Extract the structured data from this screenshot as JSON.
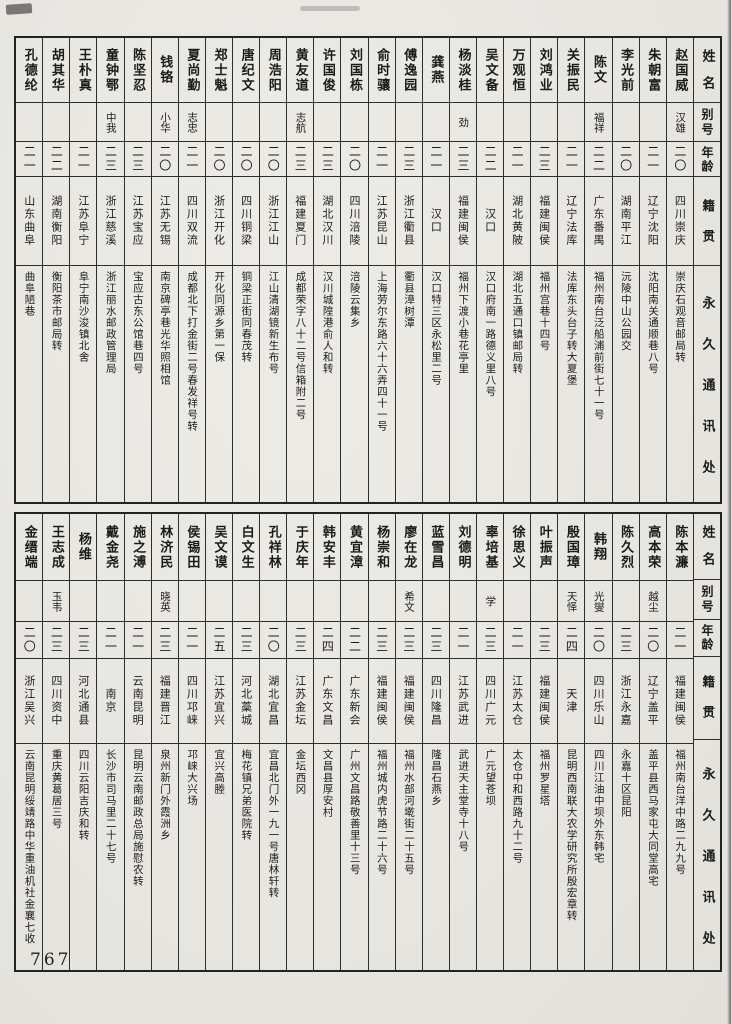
{
  "page": {
    "number": "767"
  },
  "headers": {
    "name": "姓名",
    "alias": "别号",
    "age": "年龄",
    "origin": "籍贯",
    "address": "永久通讯处"
  },
  "tables": [
    {
      "people": [
        {
          "name": "赵国威",
          "alias": "汉雄",
          "age": "二〇",
          "origin": "四川崇庆",
          "address": "崇庆石观音邮局转"
        },
        {
          "name": "朱朝富",
          "alias": "",
          "age": "二一",
          "origin": "辽宁沈阳",
          "address": "沈阳南关通顺巷八号"
        },
        {
          "name": "李光前",
          "alias": "",
          "age": "二〇",
          "origin": "湖南平江",
          "address": "沅陵中山公园交"
        },
        {
          "name": "陈文",
          "alias": "福祥",
          "age": "二二",
          "origin": "广东番禺",
          "address": "福州南台泛船浦前街七十一号"
        },
        {
          "name": "关振民",
          "alias": "",
          "age": "二一",
          "origin": "辽宁法库",
          "address": "法库东头台子转大夏堡"
        },
        {
          "name": "刘鸿业",
          "alias": "",
          "age": "二三",
          "origin": "福建闽侯",
          "address": "福州宫巷十四号"
        },
        {
          "name": "万观恒",
          "alias": "",
          "age": "二一",
          "origin": "湖北黄陂",
          "address": "湖北五通口镇邮局转"
        },
        {
          "name": "吴文备",
          "alias": "",
          "age": "二二",
          "origin": "汉口",
          "address": "汉口府南一路德义里八号"
        },
        {
          "name": "杨淡桂",
          "alias": "劲",
          "age": "二三",
          "origin": "福建闽侯",
          "address": "福州下渡小巷花亭里"
        },
        {
          "name": "龚燕",
          "alias": "",
          "age": "二一",
          "origin": "汉口",
          "address": "汉口特三区永松里二号"
        },
        {
          "name": "傅逸园",
          "alias": "",
          "age": "二三",
          "origin": "浙江衢县",
          "address": "衢县漳树潭"
        },
        {
          "name": "俞时骧",
          "alias": "",
          "age": "二一",
          "origin": "江苏昆山",
          "address": "上海劳尔东路六十六弄四十一号"
        },
        {
          "name": "刘国栋",
          "alias": "",
          "age": "二〇",
          "origin": "四川涪陵",
          "address": "涪陵云集乡"
        },
        {
          "name": "许国俊",
          "alias": "",
          "age": "二三",
          "origin": "湖北汉川",
          "address": "汉川城隍港俞人和转"
        },
        {
          "name": "黄友道",
          "alias": "志航",
          "age": "二三",
          "origin": "福建夏门",
          "address": "成都荣字八十二号信箱附二号"
        },
        {
          "name": "周浩阳",
          "alias": "",
          "age": "二〇",
          "origin": "浙江江山",
          "address": "江山清湖镜新生布号"
        },
        {
          "name": "唐纪文",
          "alias": "",
          "age": "二〇",
          "origin": "四川铜梁",
          "address": "铜梁正街同春茂转"
        },
        {
          "name": "郑士魁",
          "alias": "",
          "age": "二〇",
          "origin": "浙江开化",
          "address": "开化同源乡第一保"
        },
        {
          "name": "夏尚勤",
          "alias": "志忠",
          "age": "二一",
          "origin": "四川双流",
          "address": "成都北下打金街二号春发祥号转"
        },
        {
          "name": "钱铬",
          "alias": "小华",
          "age": "二〇",
          "origin": "江苏无锡",
          "address": "南京碑亭巷光华照相馆"
        },
        {
          "name": "陈坚忍",
          "alias": "",
          "age": "二三",
          "origin": "江苏宝应",
          "address": "宝应古东公馆巷四号"
        },
        {
          "name": "童钟鄂",
          "alias": "中我",
          "age": "二三",
          "origin": "浙江慈溪",
          "address": "浙江丽水邮政管理局"
        },
        {
          "name": "王朴真",
          "alias": "",
          "age": "二一",
          "origin": "江苏阜宁",
          "address": "阜宁南沙浚镇北舍"
        },
        {
          "name": "胡其华",
          "alias": "",
          "age": "二二",
          "origin": "湖南衡阳",
          "address": "衡阳茶市邮局转"
        },
        {
          "name": "孔德纶",
          "alias": "",
          "age": "二一",
          "origin": "山东曲阜",
          "address": "曲阜陋巷"
        }
      ]
    },
    {
      "people": [
        {
          "name": "陈本濂",
          "alias": "",
          "age": "二一",
          "origin": "福建闽侯",
          "address": "福州南台洋中路二九九号"
        },
        {
          "name": "高本荣",
          "alias": "越尘",
          "age": "二〇",
          "origin": "辽宁盖平",
          "address": "盖平县西马家屯大同堂高宅"
        },
        {
          "name": "陈久烈",
          "alias": "",
          "age": "二三",
          "origin": "浙江永嘉",
          "address": "永嘉十区昆阳"
        },
        {
          "name": "韩翔",
          "alias": "光燮",
          "age": "二〇",
          "origin": "四川乐山",
          "address": "四川江油中坝外东韩宅"
        },
        {
          "name": "殷国璋",
          "alias": "天怿",
          "age": "二四",
          "origin": "天津",
          "address": "昆明西南联大农学研究所殷宏章转"
        },
        {
          "name": "叶振声",
          "alias": "",
          "age": "二三",
          "origin": "福建闽侯",
          "address": "福州罗星塔"
        },
        {
          "name": "徐思义",
          "alias": "",
          "age": "二一",
          "origin": "江苏太仓",
          "address": "太仓中和西路九十二号"
        },
        {
          "name": "辜培基",
          "alias": "学",
          "age": "二三",
          "origin": "四川广元",
          "address": "广元望苍坝"
        },
        {
          "name": "刘德明",
          "alias": "",
          "age": "二一",
          "origin": "江苏武进",
          "address": "武进天主堂寺十八号"
        },
        {
          "name": "蓝雪昌",
          "alias": "",
          "age": "二三",
          "origin": "四川隆昌",
          "address": "隆昌石燕乡"
        },
        {
          "name": "廖在龙",
          "alias": "希文",
          "age": "二三",
          "origin": "福建闽侯",
          "address": "福州水部河墘街二十五号"
        },
        {
          "name": "杨崇和",
          "alias": "",
          "age": "二三",
          "origin": "福建闽侯",
          "address": "福州城内虎节路二十六号"
        },
        {
          "name": "黄宜漳",
          "alias": "",
          "age": "二二",
          "origin": "广东新会",
          "address": "广州文昌路敬善里十三号"
        },
        {
          "name": "韩安丰",
          "alias": "",
          "age": "二四",
          "origin": "广东文昌",
          "address": "文昌县厚安村"
        },
        {
          "name": "于庆年",
          "alias": "",
          "age": "二三",
          "origin": "江苏金坛",
          "address": "金坛西冈"
        },
        {
          "name": "孔祥林",
          "alias": "",
          "age": "二〇",
          "origin": "湖北宜昌",
          "address": "宜昌北门外一九一号唐林轩转"
        },
        {
          "name": "白文生",
          "alias": "",
          "age": "二三",
          "origin": "河北藁城",
          "address": "梅花镇兄弟医院转"
        },
        {
          "name": "吴文谟",
          "alias": "",
          "age": "二五",
          "origin": "江苏宜兴",
          "address": "宜兴高塍"
        },
        {
          "name": "侯锡田",
          "alias": "",
          "age": "二一",
          "origin": "四川邛崃",
          "address": "邛崃大兴场"
        },
        {
          "name": "林济民",
          "alias": "晓英",
          "age": "二三",
          "origin": "福建晋江",
          "address": "泉州新门外霞洲乡"
        },
        {
          "name": "施之溥",
          "alias": "",
          "age": "二一",
          "origin": "云南昆明",
          "address": "昆明云南邮政总局施慰农转"
        },
        {
          "name": "戴金尧",
          "alias": "",
          "age": "二一",
          "origin": "南京",
          "address": "长沙市司马里二十七号"
        },
        {
          "name": "杨维",
          "alias": "",
          "age": "二三",
          "origin": "河北通县",
          "address": "四川云阳吉庆和转"
        },
        {
          "name": "王志成",
          "alias": "玉韦",
          "age": "二三",
          "origin": "四川资中",
          "address": "重庆黄葛居三号"
        },
        {
          "name": "金缙端",
          "alias": "",
          "age": "二〇",
          "origin": "浙江吴兴",
          "address": "云南昆明绥靖路中华重油机社金襄七收"
        }
      ]
    }
  ]
}
